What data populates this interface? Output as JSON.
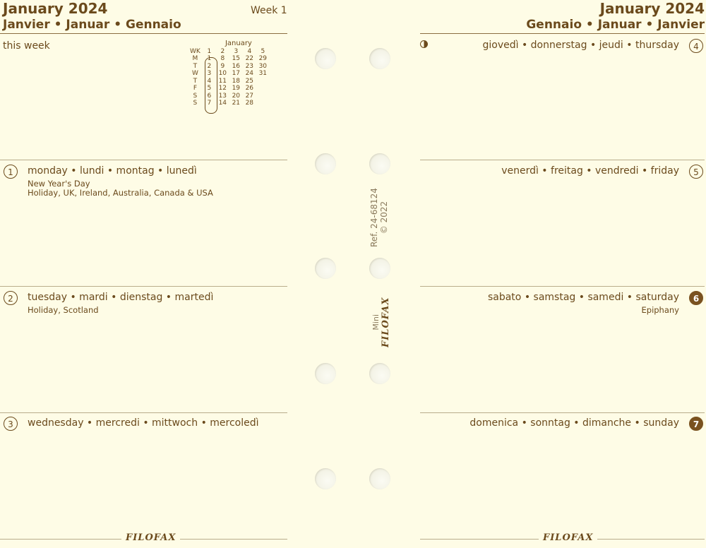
{
  "left": {
    "title": "January 2024",
    "week": "Week 1",
    "subtitle": "Janvier • Januar • Gennaio",
    "this_week": "this week",
    "mini_calendar": {
      "month": "January",
      "header": [
        "WK",
        "1",
        "2",
        "3",
        "4",
        "5"
      ],
      "rows": [
        [
          "M",
          "1",
          "8",
          "15",
          "22",
          "29"
        ],
        [
          "T",
          "2",
          "9",
          "16",
          "23",
          "30"
        ],
        [
          "W",
          "3",
          "10",
          "17",
          "24",
          "31"
        ],
        [
          "T",
          "4",
          "11",
          "18",
          "25",
          ""
        ],
        [
          "F",
          "5",
          "12",
          "19",
          "26",
          ""
        ],
        [
          "S",
          "6",
          "13",
          "20",
          "27",
          ""
        ],
        [
          "S",
          "7",
          "14",
          "21",
          "28",
          ""
        ]
      ]
    },
    "days": [
      {
        "num": "1",
        "label": "monday • lundi • montag • lunedì",
        "notes": [
          "New Year's Day",
          "Holiday, UK, Ireland, Australia, Canada & USA"
        ]
      },
      {
        "num": "2",
        "label": "tuesday • mardi • dienstag • martedì",
        "notes": [
          "Holiday, Scotland"
        ]
      },
      {
        "num": "3",
        "label": "wednesday • mercredi • mittwoch • mercoledì",
        "notes": []
      }
    ],
    "footer_logo": "FILOFAX"
  },
  "right": {
    "title": "January 2024",
    "subtitle": "Gennaio • Januar • Janvier",
    "moon_icon": "first-quarter-moon",
    "days": [
      {
        "num": "4",
        "label": "giovedì • donnerstag • jeudi • thursday",
        "notes": [],
        "filled": false
      },
      {
        "num": "5",
        "label": "venerdì • freitag • vendredi • friday",
        "notes": [],
        "filled": false
      },
      {
        "num": "6",
        "label": "sabato • samstag • samedi • saturday",
        "notes": [
          "Epiphany"
        ],
        "filled": true
      },
      {
        "num": "7",
        "label": "domenica • sonntag • dimanche • sunday",
        "notes": [],
        "filled": true
      }
    ],
    "footer_logo": "FILOFAX"
  },
  "spine": {
    "ref": "Ref. 24-68124",
    "copyright": "© 2022",
    "size": "Mini",
    "logo": "FILOFAX"
  },
  "colors": {
    "text": "#6b4a1c",
    "paper": "#fefce6",
    "filled_circle": "#7a5220"
  }
}
